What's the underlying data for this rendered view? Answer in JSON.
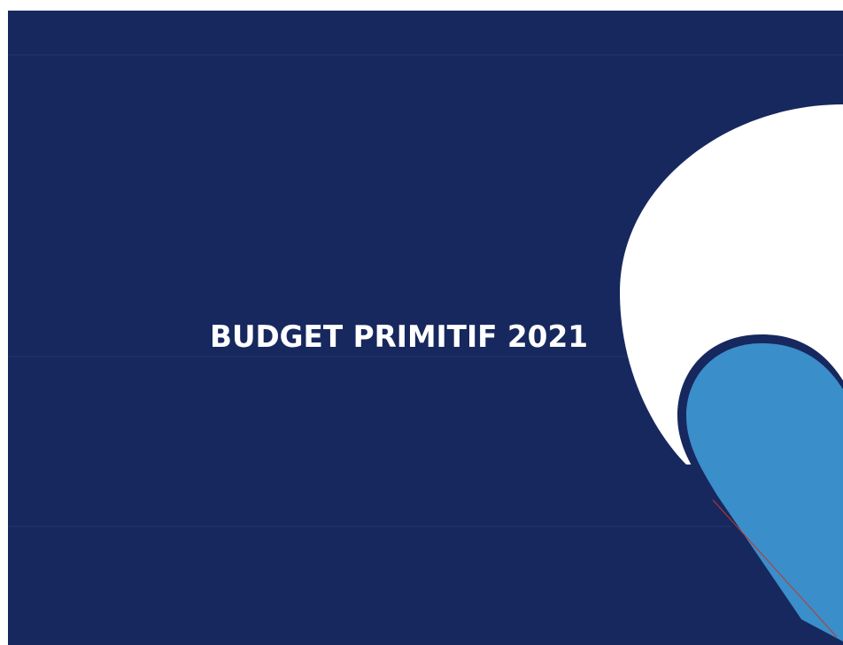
{
  "header": {
    "title": "BUDGET PRIMITIF 2021"
  }
}
